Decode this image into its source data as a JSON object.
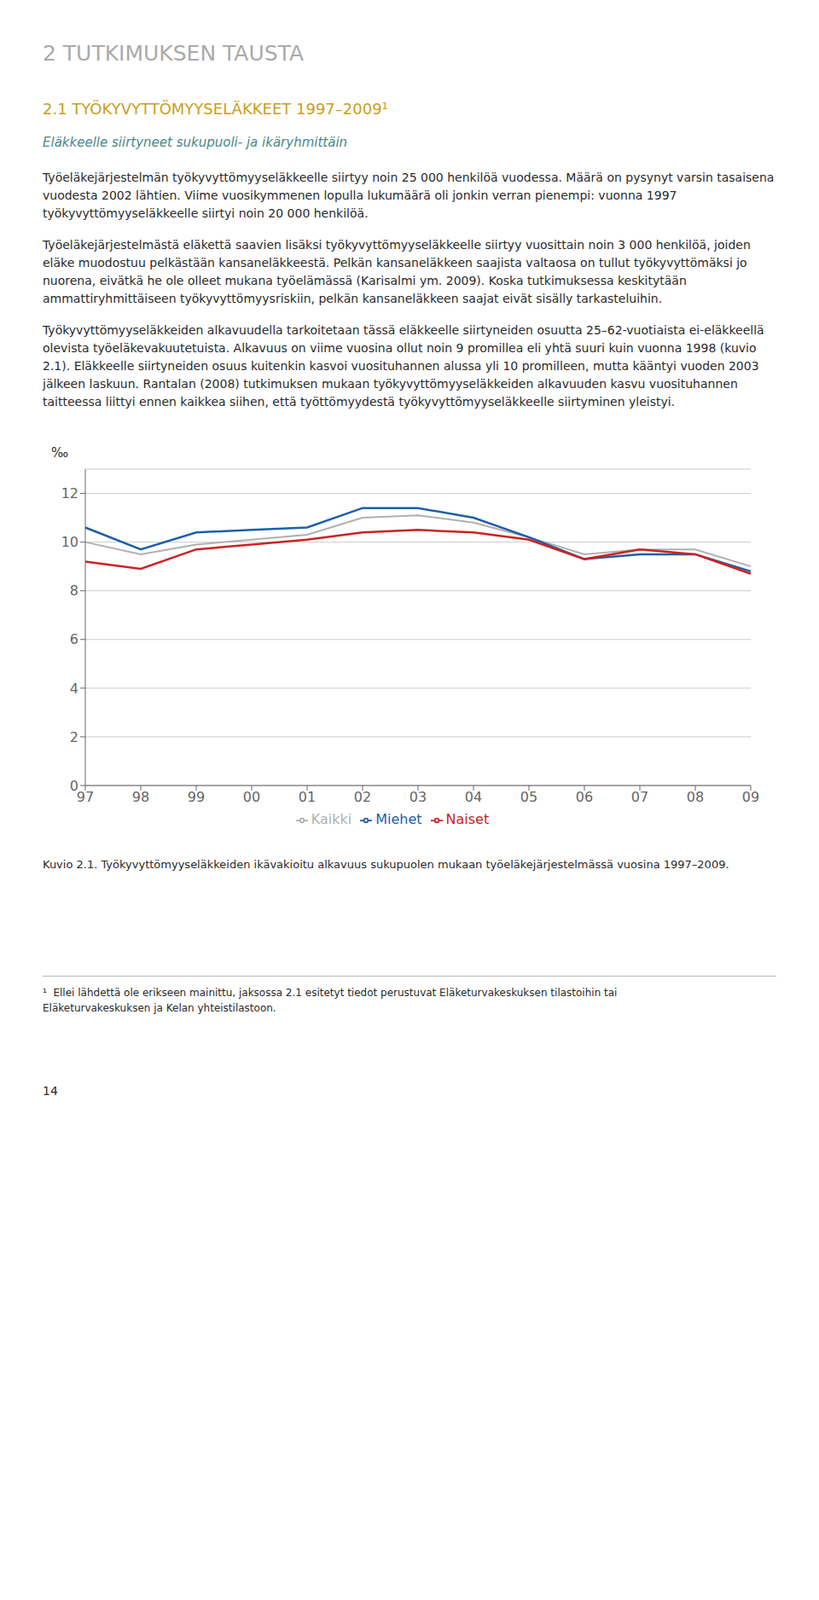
{
  "chart_data": {
    "type": "line",
    "title": "2.1    TYÖKYVYTTÖMYYSELÄKKEET 1997–2009¹",
    "subtitle": "Eläkkeelle siirtyneet sukupuoli- ja ikäryhmittäin",
    "annotations": [
      "2    TUTKIMUKSEN TAUSTA",
      "Työeläkejärjestelmän työkyvyttömyyseläkkeelle siirtyy noin 25 000 henkilöä vuodessa. Määrä on pysynyt varsin tasaisena vuodesta 2002 lähtien. Viime vuosikymmenen lopulla lukumäärä oli jonkin verran pienempi: vuonna 1997 työkyvyttömyyseläkkeelle siirtyi noin 20 000 henkilöä.",
      "Työeläkejärjestelmästä eläkettä saavien lisäksi työkyvyttömyyseläkkeelle siirtyy vuosittain noin 3 000 henkilöä, joiden eläke muodostuu pelkästään kansaneläkkeestä. Pelkän kansaneläkkeen saajista valtaosa on tullut työkyvyttömäksi jo nuorena, eivätkä he ole olleet mukana työelämässä (Karisalmi ym. 2009). Koska tutkimuksessa keskitytään ammattiryhmittäiseen työkyvyttömyysriskiin, pelkän kansaneläkkeen saajat eivät sisälly tarkasteluihin.",
      "Työkyvyttömyyseläkkeiden alkavuudella tarkoitetaan tässä eläkkeelle siirtyneiden osuutta 25–62-vuotiaista ei-eläkkeellä olevista työeläkevakuutetuista. Alkavuus on viime vuosina ollut noin 9 promillea eli yhtä suuri kuin vuonna 1998 (kuvio 2.1). Eläkkeelle siirtyneiden osuus kuitenkin kasvoi vuosituhannen alussa yli 10 promilleen, mutta kääntyi vuoden 2003 jälkeen laskuun. Rantalan (2008) tutkimuksen mukaan työkyvyttömyyseläkkeiden alkavuuden kasvu vuosituhannen taitteessa liittyi ennen kaikkea siihen, että työttömyydestä työkyvyttömyyseläkkeelle siirtyminen yleistyi.",
      "Kuvio 2.1.  Työkyvyttömyyseläkkeiden ikävakioitu alkavuus sukupuolen mukaan työeläkejärjestelmässä vuosina 1997–2009.",
      "¹  Ellei lähdettä ole erikseen mainittu, jaksossa 2.1 esitetyt tiedot perustuvat Eläketurvakeskuksen tilastoihin tai\nEläketurvakeskuksen ja Kelan yhteistilastoon.",
      "14"
    ],
    "ylabel": "‰",
    "categories": [
      "97",
      "98",
      "99",
      "00",
      "01",
      "02",
      "03",
      "04",
      "05",
      "06",
      "07",
      "08",
      "09"
    ],
    "series": [
      {
        "name": "Kaikki",
        "color": "#b0b0b0",
        "values": [
          10.0,
          9.5,
          9.9,
          10.1,
          10.3,
          11.0,
          11.1,
          10.8,
          10.2,
          9.5,
          9.7,
          9.7,
          9.0
        ]
      },
      {
        "name": "Miehet",
        "color": "#1e5fa8",
        "values": [
          10.6,
          9.7,
          10.4,
          10.5,
          10.6,
          11.4,
          11.4,
          11.0,
          10.2,
          9.3,
          9.5,
          9.5,
          8.8
        ]
      },
      {
        "name": "Naiset",
        "color": "#cc2222",
        "values": [
          9.2,
          8.9,
          9.7,
          9.9,
          10.1,
          10.4,
          10.5,
          10.4,
          10.1,
          9.3,
          9.7,
          9.5,
          8.7
        ]
      }
    ],
    "ylim": [
      0,
      13
    ],
    "yticks": [
      0,
      2,
      4,
      6,
      8,
      10,
      12
    ],
    "grid": true,
    "legend": "bottom"
  }
}
